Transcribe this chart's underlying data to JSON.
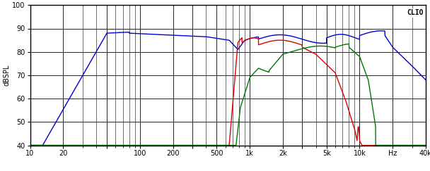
{
  "title": "CLIO",
  "ylabel": "dBSPL",
  "xlabel": "Hz",
  "xmin": 10,
  "xmax": 40000,
  "ymin": 40,
  "ymax": 100,
  "yticks": [
    40,
    50,
    60,
    70,
    80,
    90,
    100
  ],
  "xtick_labels": [
    "10",
    "20",
    "",
    "100",
    "200",
    "",
    "500",
    "1k",
    "2k",
    "",
    "5k",
    "10k",
    "Hz",
    "40k"
  ],
  "xtick_positions": [
    10,
    20,
    50,
    100,
    200,
    300,
    500,
    1000,
    2000,
    3000,
    5000,
    10000,
    20000,
    40000
  ],
  "bg_color": "#ffffff",
  "plot_bg": "#ffffff",
  "grid_color": "#000000",
  "blue_color": "#0000cc",
  "red_color": "#dd0000",
  "green_color": "#007700",
  "line_width": 1.0,
  "figw": 6.08,
  "figh": 2.43,
  "dpi": 100
}
